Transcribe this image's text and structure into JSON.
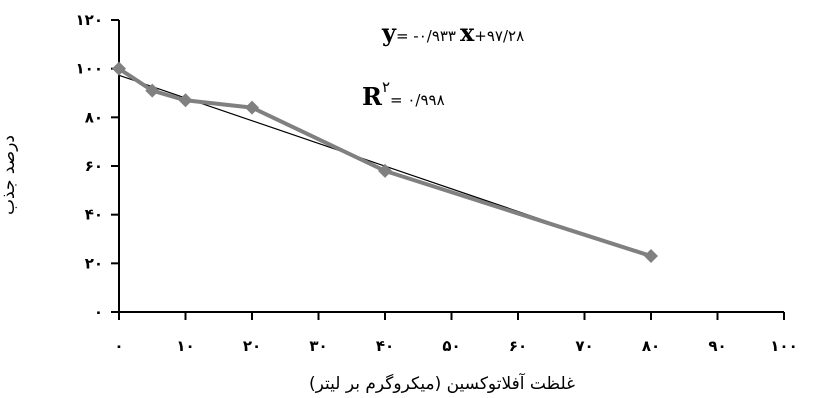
{
  "chart_data": {
    "type": "scatter",
    "title": "",
    "xlabel": "غلظت آفلاتوکسین (میکروگرم بر لیتر)",
    "ylabel": "درصد جذب",
    "xlim": [
      0,
      100
    ],
    "ylim": [
      0,
      120
    ],
    "x_ticks": [
      "۰",
      "۱۰",
      "۲۰",
      "۳۰",
      "۴۰",
      "۵۰",
      "۶۰",
      "۷۰",
      "۸۰",
      "۹۰",
      "۱۰۰"
    ],
    "y_ticks": [
      "۰",
      "۲۰",
      "۴۰",
      "۶۰",
      "۸۰",
      "۱۰۰",
      "۱۲۰"
    ],
    "series": [
      {
        "x": [
          0,
          5,
          10,
          20,
          40,
          80
        ],
        "y": [
          100,
          91,
          87,
          84,
          58,
          23
        ],
        "color": "#808080",
        "marker": "diamond"
      }
    ],
    "trendline": {
      "slope": -0.933,
      "intercept": 97.28,
      "x_range": [
        0,
        80
      ],
      "color": "#000000"
    },
    "annotations": {
      "eq_y": "y",
      "eq_rest": "= -۰/۹۳۳",
      "eq_x": "x",
      "eq_tail": "+۹۷/۲۸",
      "r2_r": "R",
      "r2_sup": "۲",
      "r2_value": "= ۰/۹۹۸"
    }
  }
}
